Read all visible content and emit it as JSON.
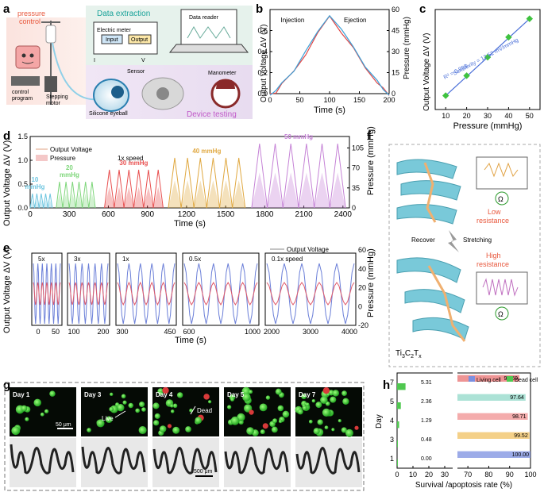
{
  "panel_letters": [
    "a",
    "b",
    "c",
    "d",
    "e",
    "f",
    "g",
    "h"
  ],
  "panel_a": {
    "pressure_control": "pressure\ncontrol",
    "data_extraction": "Data extraction",
    "data_reader": "Data reader",
    "electric_meter": "Electric meter",
    "input": "Input",
    "output": "Output",
    "I": "I",
    "V": "V",
    "sensor": "Sensor",
    "manometer": "Manometer",
    "control_program": "control\nprogram",
    "stepping_motor": "Stepping\nmotor",
    "silicone_eyeball": "Silicone eyeball",
    "device_testing": "Device testing",
    "colors": {
      "pink_bg": "#fbe3de",
      "green_bg": "#e6f2ec",
      "purple_bg": "#ece6f3",
      "label_red": "#e8573c",
      "label_teal": "#1aa39a",
      "label_purple": "#c058c8"
    }
  },
  "panel_f": {
    "low_resistance": "Low\nresistance",
    "high_resistance": "High\nresistance",
    "recover": "Recover",
    "stretching": "Stretching",
    "ohm": "Ω",
    "material": "Ti3C2Tx"
  },
  "panel_g": {
    "days": [
      "Day 1",
      "Day 3",
      "Day 4",
      "Day 5",
      "Day 7"
    ],
    "live": "Live",
    "dead": "Dead",
    "scale_top": "50 μm",
    "scale_bottom": "500 μm"
  },
  "chart_data": [
    {
      "panel": "b",
      "type": "line",
      "xlabel": "Time (s)",
      "ylabel": "Output Voltage ΔV (V)",
      "y2label": "Pressure (mmHg)",
      "xlim": [
        0,
        200
      ],
      "ylim": [
        0,
        0.8
      ],
      "y2lim": [
        0,
        60
      ],
      "xticks": [
        0,
        50,
        100,
        150,
        200
      ],
      "yticks": [
        0.0,
        0.2,
        0.4,
        0.6
      ],
      "y2ticks": [
        0,
        15,
        30,
        45,
        60
      ],
      "annotations": [
        "Injection",
        "Ejection"
      ],
      "series": [
        {
          "color": "#e04848",
          "x": [
            0,
            10,
            20,
            40,
            60,
            80,
            100,
            120,
            140,
            160,
            180,
            190,
            200
          ],
          "y": [
            0.0,
            0.02,
            0.08,
            0.22,
            0.38,
            0.56,
            0.75,
            0.58,
            0.42,
            0.26,
            0.1,
            0.04,
            0.0
          ]
        },
        {
          "color": "#3aa0d8",
          "x": [
            0,
            10,
            20,
            40,
            60,
            80,
            100,
            120,
            140,
            160,
            180,
            190,
            200
          ],
          "y": [
            0.0,
            0.03,
            0.09,
            0.23,
            0.4,
            0.58,
            0.76,
            0.6,
            0.44,
            0.27,
            0.11,
            0.04,
            0.0
          ]
        }
      ]
    },
    {
      "panel": "c",
      "type": "scatter",
      "xlabel": "Pressure (mmHg)",
      "ylabel": "Output Voltage ΔV (V)",
      "xlim": [
        5,
        55
      ],
      "ylim": [
        0.15,
        0.8
      ],
      "xticks": [
        10,
        20,
        30,
        40,
        50
      ],
      "annotations": [
        "R² = 0.998",
        "Sensitivity = 12.52 mV/mmHg"
      ],
      "x": [
        10,
        20,
        30,
        40,
        50
      ],
      "y": [
        0.24,
        0.37,
        0.49,
        0.62,
        0.74
      ],
      "colors": {
        "point": "#3fc23f",
        "fit": "#4a6fd8"
      }
    },
    {
      "panel": "d",
      "type": "line",
      "xlabel": "Time (s)",
      "ylabel": "Output Voltage ΔV (V)",
      "y2label": "Pressure (mmHg)",
      "xlim": [
        0,
        2450
      ],
      "ylim": [
        0,
        1.5
      ],
      "y2lim": [
        0,
        125
      ],
      "xticks": [
        0,
        300,
        600,
        900,
        1200,
        1500,
        1800,
        2100,
        2400
      ],
      "yticks": [
        0.0,
        0.5,
        1.0,
        1.5
      ],
      "y2ticks": [
        0,
        35,
        70,
        105
      ],
      "legend": [
        "Output Voltage",
        "Pressure"
      ],
      "speed_label": "1x speed",
      "segments": [
        {
          "label": "10\nmmHg",
          "color": "#6fc6e0",
          "start": 0,
          "end": 170,
          "cycles": 5,
          "peak": 0.3
        },
        {
          "label": "20\nmmHg",
          "color": "#7ed67a",
          "start": 200,
          "end": 500,
          "cycles": 6,
          "peak": 0.55
        },
        {
          "label": "30 mmHg",
          "color": "#e85050",
          "start": 570,
          "end": 1020,
          "cycles": 6,
          "peak": 0.8
        },
        {
          "label": "40 mmHg",
          "color": "#e0a840",
          "start": 1060,
          "end": 1650,
          "cycles": 6,
          "peak": 1.05
        },
        {
          "label": "50 mmHg",
          "color": "#c582d6",
          "start": 1700,
          "end": 2420,
          "cycles": 6,
          "peak": 1.35
        }
      ]
    },
    {
      "panel": "e",
      "type": "line",
      "xlabel": "Time (s)",
      "ylabel": "Output Voltage ΔV (V)",
      "y2label": "Pressure (mmHg)",
      "legend": [
        "Output Voltage"
      ],
      "y2ticks": [
        -20,
        0,
        20,
        40,
        60
      ],
      "subplots": [
        {
          "label": "5x",
          "xticks": [
            0,
            50
          ],
          "cycles": 6
        },
        {
          "label": "3x",
          "xticks": [
            100,
            200
          ],
          "cycles": 6
        },
        {
          "label": "1x",
          "xticks": [
            300,
            450
          ],
          "cycles": 5
        },
        {
          "label": "0.5x",
          "xticks": [
            600,
            1000
          ],
          "cycles": 5
        },
        {
          "label": "0.1x speed",
          "xticks": [
            2000,
            3000,
            4000
          ],
          "cycles": 5
        }
      ],
      "colors": {
        "voltage": "#6b7fd8",
        "pressure": "#e05a6a"
      }
    },
    {
      "panel": "h",
      "type": "bar",
      "orientation": "horizontal",
      "xlabel": "Survival /apoptosis rate (%)",
      "ylabel": "Day",
      "categories": [
        "1",
        "3",
        "4",
        "5",
        "7"
      ],
      "series": [
        {
          "name": "Living cell",
          "values": [
            100.0,
            99.52,
            98.71,
            97.64,
            94.69
          ]
        },
        {
          "name": "Dead cell",
          "values": [
            0.0,
            0.48,
            1.29,
            2.36,
            5.31
          ]
        }
      ],
      "xticks": [
        0,
        10,
        20,
        30,
        70,
        80,
        90,
        100
      ],
      "axis_break": [
        35,
        65
      ],
      "bar_colors": [
        "#7b8fe0",
        "#f0c060",
        "#f09090",
        "#90d8c8",
        "#e87070"
      ],
      "legend_colors": {
        "Living cell": "#7b8fe0",
        "Dead cell": "#50c850"
      }
    }
  ]
}
